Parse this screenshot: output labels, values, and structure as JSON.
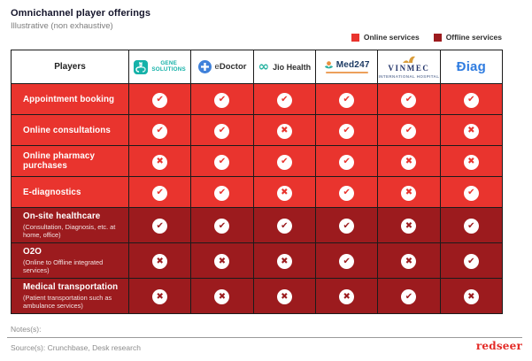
{
  "header": {
    "title": "Omnichannel player offerings",
    "subtitle": "Illustrative (non exhaustive)"
  },
  "legend": {
    "online": {
      "label": "Online services",
      "color": "#e9342e"
    },
    "offline": {
      "label": "Offline services",
      "color": "#9c1b1e"
    }
  },
  "chart_data": {
    "type": "table",
    "title": "Omnichannel player offerings",
    "subtitle": "Illustrative (non exhaustive)",
    "players_header": "Players",
    "players": [
      "Gene Solutions",
      "eDoctor",
      "Jio Health",
      "Med247",
      "Vinmec",
      "Diag"
    ],
    "legend_entries": [
      "Online services",
      "Offline services"
    ],
    "icons": {
      "offered": "check-icon",
      "not_offered": "cross-icon"
    },
    "rows": [
      {
        "service": "Appointment booking",
        "detail": "",
        "category": "online",
        "offerings": [
          true,
          true,
          true,
          true,
          true,
          true
        ]
      },
      {
        "service": "Online consultations",
        "detail": "",
        "category": "online",
        "offerings": [
          true,
          true,
          false,
          true,
          true,
          false
        ]
      },
      {
        "service": "Online pharmacy purchases",
        "detail": "",
        "category": "online",
        "offerings": [
          false,
          true,
          true,
          true,
          false,
          false
        ]
      },
      {
        "service": "E-diagnostics",
        "detail": "",
        "category": "online",
        "offerings": [
          true,
          true,
          false,
          true,
          false,
          true
        ]
      },
      {
        "service": "On-site healthcare",
        "detail": "(Consultation, Diagnosis, etc. at home, office)",
        "category": "offline",
        "offerings": [
          true,
          true,
          true,
          true,
          false,
          true
        ]
      },
      {
        "service": "O2O",
        "detail": "(Online to Offline integrated services)",
        "category": "offline",
        "offerings": [
          false,
          false,
          false,
          true,
          false,
          true
        ]
      },
      {
        "service": "Medical transportation",
        "detail": "(Patient transportation such as ambulance services)",
        "category": "offline",
        "offerings": [
          false,
          false,
          false,
          false,
          true,
          false
        ]
      }
    ]
  },
  "logos": {
    "gene": {
      "line1": "GENE",
      "line2": "SOLUTIONS"
    },
    "edoctor": {
      "prefix": "e",
      "rest": "Doctor"
    },
    "jio": {
      "symbol": "∞",
      "text": "Jio Health"
    },
    "med247": {
      "text": "Med247"
    },
    "vinmec": {
      "text": "VINMEC",
      "subtext": "INTERNATIONAL HOSPITAL"
    },
    "diag": {
      "text": "Ðiag"
    }
  },
  "footer": {
    "notes": "Notes(s):",
    "source": "Source(s): Crunchbase, Desk research",
    "brand": "redseer"
  }
}
